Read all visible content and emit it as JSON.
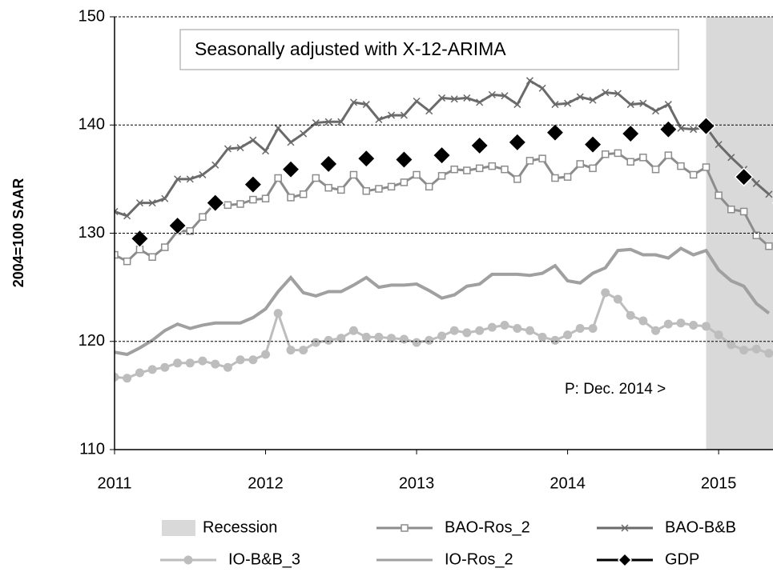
{
  "chart_data": {
    "type": "line",
    "annotation": "Seasonally adjusted with X-12-ARIMA",
    "note": "P: Dec. 2014 >",
    "y_label": "2004=100 SAAR",
    "xlim": [
      2011,
      2015.36
    ],
    "xticks": [
      2011,
      2012,
      2013,
      2014,
      2015
    ],
    "ylim": [
      110,
      150
    ],
    "yticks": [
      110,
      120,
      130,
      140,
      150
    ],
    "grid": true,
    "recession": {
      "name": "Recession",
      "color": "#d9d9d9",
      "start": 2014.917
    },
    "series": [
      {
        "name": "BAO-Ros_2",
        "color": "#8c8c8c",
        "marker": "square",
        "x": [
          2011,
          2011.083,
          2011.167,
          2011.25,
          2011.333,
          2011.417,
          2011.5,
          2011.583,
          2011.667,
          2011.75,
          2011.833,
          2011.917,
          2012,
          2012.083,
          2012.167,
          2012.25,
          2012.333,
          2012.417,
          2012.5,
          2012.583,
          2012.667,
          2012.75,
          2012.833,
          2012.917,
          2013,
          2013.083,
          2013.167,
          2013.25,
          2013.333,
          2013.417,
          2013.5,
          2013.583,
          2013.667,
          2013.75,
          2013.833,
          2013.917,
          2014,
          2014.083,
          2014.167,
          2014.25,
          2014.333,
          2014.417,
          2014.5,
          2014.583,
          2014.667,
          2014.75,
          2014.833,
          2014.917,
          2015,
          2015.083,
          2015.167,
          2015.25,
          2015.333
        ],
        "values": [
          128.0,
          127.4,
          128.5,
          127.8,
          128.7,
          130.2,
          130.2,
          131.5,
          132.8,
          132.6,
          132.7,
          133.1,
          133.2,
          135.1,
          133.3,
          133.6,
          135.1,
          134.2,
          134.0,
          135.4,
          133.9,
          134.1,
          134.3,
          134.7,
          135.4,
          134.3,
          135.3,
          135.9,
          135.8,
          136.0,
          136.2,
          135.9,
          135.0,
          136.7,
          136.9,
          135.1,
          135.2,
          136.4,
          136.0,
          137.3,
          137.4,
          136.6,
          137.0,
          135.9,
          137.2,
          136.2,
          135.4,
          136.1,
          133.5,
          132.2,
          132.0,
          129.8,
          128.8
        ]
      },
      {
        "name": "BAO-B&B",
        "color": "#6a6a6a",
        "marker": "x",
        "x": [
          2011,
          2011.083,
          2011.167,
          2011.25,
          2011.333,
          2011.417,
          2011.5,
          2011.583,
          2011.667,
          2011.75,
          2011.833,
          2011.917,
          2012,
          2012.083,
          2012.167,
          2012.25,
          2012.333,
          2012.417,
          2012.5,
          2012.583,
          2012.667,
          2012.75,
          2012.833,
          2012.917,
          2013,
          2013.083,
          2013.167,
          2013.25,
          2013.333,
          2013.417,
          2013.5,
          2013.583,
          2013.667,
          2013.75,
          2013.833,
          2013.917,
          2014,
          2014.083,
          2014.167,
          2014.25,
          2014.333,
          2014.417,
          2014.5,
          2014.583,
          2014.667,
          2014.75,
          2014.833,
          2014.917,
          2015,
          2015.083,
          2015.167,
          2015.25,
          2015.333
        ],
        "values": [
          132.0,
          131.6,
          132.8,
          132.8,
          133.2,
          135.0,
          135.0,
          135.4,
          136.3,
          137.8,
          137.9,
          138.6,
          137.6,
          139.7,
          138.4,
          139.2,
          140.2,
          140.3,
          140.3,
          142.1,
          141.9,
          140.5,
          140.9,
          140.9,
          142.2,
          141.3,
          142.5,
          142.4,
          142.5,
          142.1,
          142.8,
          142.7,
          141.9,
          144.1,
          143.4,
          141.9,
          142.0,
          142.6,
          142.3,
          143.0,
          142.9,
          141.9,
          142.0,
          141.3,
          141.9,
          139.7,
          139.6,
          139.8,
          138.2,
          137.0,
          135.9,
          134.6,
          133.6
        ]
      },
      {
        "name": "IO-B&B_3",
        "color": "#bdbdbd",
        "marker": "circle",
        "x": [
          2011,
          2011.083,
          2011.167,
          2011.25,
          2011.333,
          2011.417,
          2011.5,
          2011.583,
          2011.667,
          2011.75,
          2011.833,
          2011.917,
          2012,
          2012.083,
          2012.167,
          2012.25,
          2012.333,
          2012.417,
          2012.5,
          2012.583,
          2012.667,
          2012.75,
          2012.833,
          2012.917,
          2013,
          2013.083,
          2013.167,
          2013.25,
          2013.333,
          2013.417,
          2013.5,
          2013.583,
          2013.667,
          2013.75,
          2013.833,
          2013.917,
          2014,
          2014.083,
          2014.167,
          2014.25,
          2014.333,
          2014.417,
          2014.5,
          2014.583,
          2014.667,
          2014.75,
          2014.833,
          2014.917,
          2015,
          2015.083,
          2015.167,
          2015.25,
          2015.333
        ],
        "values": [
          116.7,
          116.6,
          117.1,
          117.4,
          117.6,
          118.0,
          118.0,
          118.2,
          117.9,
          117.6,
          118.3,
          118.3,
          118.8,
          122.6,
          119.2,
          119.2,
          119.9,
          120.1,
          120.3,
          121.0,
          120.4,
          120.4,
          120.3,
          120.2,
          119.9,
          120.1,
          120.5,
          121.0,
          120.8,
          121.0,
          121.3,
          121.5,
          121.2,
          121.0,
          120.4,
          120.1,
          120.6,
          121.2,
          121.2,
          124.5,
          123.9,
          122.4,
          121.9,
          121.0,
          121.6,
          121.7,
          121.5,
          121.4,
          120.6,
          119.7,
          119.2,
          119.3,
          118.9
        ]
      },
      {
        "name": "IO-Ros_2",
        "color": "#a0a0a0",
        "marker": "none",
        "x": [
          2011,
          2011.083,
          2011.167,
          2011.25,
          2011.333,
          2011.417,
          2011.5,
          2011.583,
          2011.667,
          2011.75,
          2011.833,
          2011.917,
          2012,
          2012.083,
          2012.167,
          2012.25,
          2012.333,
          2012.417,
          2012.5,
          2012.583,
          2012.667,
          2012.75,
          2012.833,
          2012.917,
          2013,
          2013.083,
          2013.167,
          2013.25,
          2013.333,
          2013.417,
          2013.5,
          2013.583,
          2013.667,
          2013.75,
          2013.833,
          2013.917,
          2014,
          2014.083,
          2014.167,
          2014.25,
          2014.333,
          2014.417,
          2014.5,
          2014.583,
          2014.667,
          2014.75,
          2014.833,
          2014.917,
          2015,
          2015.083,
          2015.167,
          2015.25,
          2015.333
        ],
        "values": [
          119.0,
          118.8,
          119.4,
          120.1,
          121.0,
          121.6,
          121.2,
          121.5,
          121.7,
          121.7,
          121.7,
          122.2,
          123.0,
          124.6,
          125.9,
          124.5,
          124.2,
          124.6,
          124.6,
          125.2,
          125.9,
          125.0,
          125.2,
          125.2,
          125.3,
          124.7,
          124.0,
          124.3,
          125.1,
          125.3,
          126.2,
          126.2,
          126.2,
          126.1,
          126.3,
          127.0,
          125.6,
          125.4,
          126.3,
          126.8,
          128.4,
          128.5,
          128.0,
          128.0,
          127.7,
          128.6,
          128.0,
          128.4,
          126.6,
          125.6,
          125.1,
          123.5,
          122.6
        ]
      },
      {
        "name": "GDP",
        "color": "#000000",
        "marker": "diamond",
        "x": [
          2011.167,
          2011.417,
          2011.667,
          2011.917,
          2012.167,
          2012.417,
          2012.667,
          2012.917,
          2013.167,
          2013.417,
          2013.667,
          2013.917,
          2014.167,
          2014.417,
          2014.667,
          2014.917,
          2015.167,
          2015.417
        ],
        "values": [
          129.5,
          130.7,
          132.8,
          134.5,
          135.9,
          136.4,
          136.9,
          136.8,
          137.2,
          138.1,
          138.4,
          139.3,
          138.2,
          139.2,
          139.6,
          139.9,
          135.2,
          132.8
        ]
      }
    ]
  }
}
